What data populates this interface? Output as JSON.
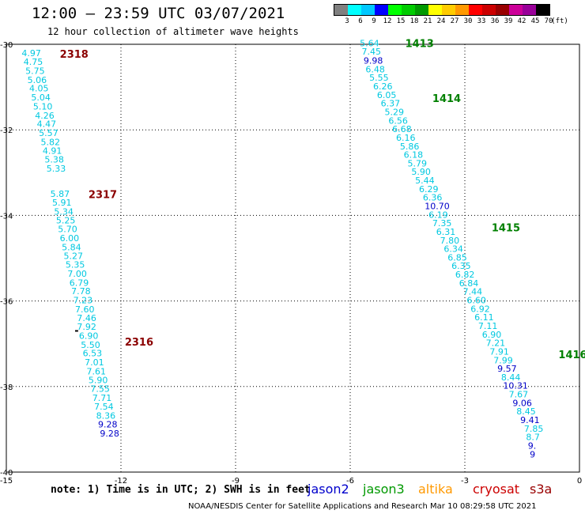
{
  "header": {
    "title": "12:00 – 23:59 UTC 03/07/2021",
    "subtitle": "12 hour collection of altimeter wave heights"
  },
  "scale": {
    "unit": "(ft)",
    "colors": [
      "#808080",
      "#00ffff",
      "#00c8ff",
      "#0000ff",
      "#00ff00",
      "#00cc00",
      "#009900",
      "#ffff00",
      "#ffcc00",
      "#ff9900",
      "#ff0000",
      "#cc0000",
      "#990000",
      "#cc0099",
      "#990099",
      "#000000"
    ],
    "labels": [
      "3",
      "6",
      "9",
      "12",
      "15",
      "18",
      "21",
      "24",
      "27",
      "30",
      "33",
      "36",
      "39",
      "42",
      "45",
      "70"
    ]
  },
  "map": {
    "lon_ticks": [
      {
        "value": -15,
        "label": "-15"
      },
      {
        "value": -12,
        "label": "-12"
      },
      {
        "value": -9,
        "label": "-9"
      },
      {
        "value": -6,
        "label": "-6"
      },
      {
        "value": -3,
        "label": "-3"
      },
      {
        "value": 0,
        "label": "0"
      }
    ],
    "lat_ticks": [
      {
        "value": -30,
        "label": "-30"
      },
      {
        "value": -32,
        "label": "-32"
      },
      {
        "value": -34,
        "label": "-34"
      },
      {
        "value": -36,
        "label": "-36"
      },
      {
        "value": -38,
        "label": "-38"
      },
      {
        "value": -40,
        "label": "-40"
      }
    ],
    "time_labels": [
      {
        "text": "2318",
        "lon": -13.6,
        "lat": -30.22,
        "color": "#8b0000"
      },
      {
        "text": "2317",
        "lon": -12.85,
        "lat": -33.5,
        "color": "#8b0000"
      },
      {
        "text": "2316",
        "lon": -11.9,
        "lat": -36.95,
        "color": "#8b0000"
      },
      {
        "text": "1413",
        "lon": -4.56,
        "lat": -29.97,
        "color": "#008000"
      },
      {
        "text": "1414",
        "lon": -3.85,
        "lat": -31.26,
        "color": "#008000"
      },
      {
        "text": "1415",
        "lon": -2.3,
        "lat": -34.28,
        "color": "#008000"
      },
      {
        "text": "1416",
        "lon": -0.55,
        "lat": -37.25,
        "color": "#008000"
      }
    ],
    "wave_heights": [
      {
        "v": "4.97",
        "lon": -14.6,
        "lat": -30.2,
        "c": "#00c8e0"
      },
      {
        "v": "4.75",
        "lon": -14.55,
        "lat": -30.41,
        "c": "#00c8e0"
      },
      {
        "v": "5.75",
        "lon": -14.5,
        "lat": -30.62,
        "c": "#00c8e0"
      },
      {
        "v": "5.06",
        "lon": -14.45,
        "lat": -30.83,
        "c": "#00c8e0"
      },
      {
        "v": "4.05",
        "lon": -14.4,
        "lat": -31.03,
        "c": "#00c8e0"
      },
      {
        "v": "5.04",
        "lon": -14.35,
        "lat": -31.24,
        "c": "#00c8e0"
      },
      {
        "v": "5.10",
        "lon": -14.3,
        "lat": -31.45,
        "c": "#00c8e0"
      },
      {
        "v": "4.26",
        "lon": -14.25,
        "lat": -31.66,
        "c": "#00c8e0"
      },
      {
        "v": "4.47",
        "lon": -14.2,
        "lat": -31.86,
        "c": "#00c8e0"
      },
      {
        "v": "5.57",
        "lon": -14.15,
        "lat": -32.07,
        "c": "#00c8e0"
      },
      {
        "v": "5.82",
        "lon": -14.1,
        "lat": -32.28,
        "c": "#00c8e0"
      },
      {
        "v": "4.91",
        "lon": -14.05,
        "lat": -32.49,
        "c": "#00c8e0"
      },
      {
        "v": "5.38",
        "lon": -14.0,
        "lat": -32.69,
        "c": "#00c8e0"
      },
      {
        "v": "5.33",
        "lon": -13.95,
        "lat": -32.9,
        "c": "#00c8e0"
      },
      {
        "v": "5.87",
        "lon": -13.85,
        "lat": -33.49,
        "c": "#00c8e0"
      },
      {
        "v": "5.91",
        "lon": -13.8,
        "lat": -33.7,
        "c": "#00c8e0"
      },
      {
        "v": "5.34",
        "lon": -13.75,
        "lat": -33.91,
        "c": "#00c8e0"
      },
      {
        "v": "5.25",
        "lon": -13.7,
        "lat": -34.11,
        "c": "#00c8e0"
      },
      {
        "v": "5.70",
        "lon": -13.65,
        "lat": -34.32,
        "c": "#00c8e0"
      },
      {
        "v": "6.00",
        "lon": -13.6,
        "lat": -34.53,
        "c": "#00c8e0"
      },
      {
        "v": "5.84",
        "lon": -13.55,
        "lat": -34.74,
        "c": "#00c8e0"
      },
      {
        "v": "5.27",
        "lon": -13.5,
        "lat": -34.94,
        "c": "#00c8e0"
      },
      {
        "v": "5.35",
        "lon": -13.45,
        "lat": -35.15,
        "c": "#00c8e0"
      },
      {
        "v": "7.00",
        "lon": -13.4,
        "lat": -35.36,
        "c": "#00c8e0"
      },
      {
        "v": "6.79",
        "lon": -13.35,
        "lat": -35.57,
        "c": "#00c8e0"
      },
      {
        "v": "7.78",
        "lon": -13.3,
        "lat": -35.77,
        "c": "#00c8e0"
      },
      {
        "v": "7.23",
        "lon": -13.25,
        "lat": -35.98,
        "c": "#00c8e0"
      },
      {
        "v": "7.60",
        "lon": -13.2,
        "lat": -36.19,
        "c": "#00c8e0"
      },
      {
        "v": "7.46",
        "lon": -13.15,
        "lat": -36.4,
        "c": "#00c8e0"
      },
      {
        "v": "7.92",
        "lon": -13.15,
        "lat": -36.6,
        "c": "#00c8e0"
      },
      {
        "v": "6.90",
        "lon": -13.1,
        "lat": -36.81,
        "c": "#00c8e0"
      },
      {
        "v": "5.50",
        "lon": -13.05,
        "lat": -37.02,
        "c": "#00c8e0"
      },
      {
        "v": "6.53",
        "lon": -13.0,
        "lat": -37.22,
        "c": "#00c8e0"
      },
      {
        "v": "7.01",
        "lon": -12.95,
        "lat": -37.43,
        "c": "#00c8e0"
      },
      {
        "v": "7.61",
        "lon": -12.9,
        "lat": -37.64,
        "c": "#00c8e0"
      },
      {
        "v": "5.90",
        "lon": -12.85,
        "lat": -37.85,
        "c": "#00c8e0"
      },
      {
        "v": "7.55",
        "lon": -12.8,
        "lat": -38.05,
        "c": "#00c8e0"
      },
      {
        "v": "7.71",
        "lon": -12.75,
        "lat": -38.26,
        "c": "#00c8e0"
      },
      {
        "v": "7.54",
        "lon": -12.7,
        "lat": -38.47,
        "c": "#00c8e0"
      },
      {
        "v": "8.36",
        "lon": -12.65,
        "lat": -38.68,
        "c": "#00c8e0"
      },
      {
        "v": "9.28",
        "lon": -12.6,
        "lat": -38.88,
        "c": "#0000c8"
      },
      {
        "v": "9.28",
        "lon": -12.55,
        "lat": -39.09,
        "c": "#0000c8"
      },
      {
        "v": "5.64",
        "lon": -5.75,
        "lat": -29.97,
        "c": "#00c8e0"
      },
      {
        "v": "7.45",
        "lon": -5.7,
        "lat": -30.17,
        "c": "#00c8e0"
      },
      {
        "v": "9.98",
        "lon": -5.65,
        "lat": -30.38,
        "c": "#0000c8"
      },
      {
        "v": "6.48",
        "lon": -5.6,
        "lat": -30.58,
        "c": "#00c8e0"
      },
      {
        "v": "5.55",
        "lon": -5.5,
        "lat": -30.78,
        "c": "#00c8e0"
      },
      {
        "v": "6.26",
        "lon": -5.4,
        "lat": -30.98,
        "c": "#00c8e0"
      },
      {
        "v": "6.05",
        "lon": -5.3,
        "lat": -31.18,
        "c": "#00c8e0"
      },
      {
        "v": "6.37",
        "lon": -5.2,
        "lat": -31.38,
        "c": "#00c8e0"
      },
      {
        "v": "5.29",
        "lon": -5.1,
        "lat": -31.58,
        "c": "#00c8e0"
      },
      {
        "v": "6.56",
        "lon": -5.0,
        "lat": -31.78,
        "c": "#00c8e0"
      },
      {
        "v": "6.68",
        "lon": -4.9,
        "lat": -31.98,
        "c": "#00c8e0"
      },
      {
        "v": "6.16",
        "lon": -4.8,
        "lat": -32.18,
        "c": "#00c8e0"
      },
      {
        "v": "5.86",
        "lon": -4.7,
        "lat": -32.38,
        "c": "#00c8e0"
      },
      {
        "v": "6.18",
        "lon": -4.6,
        "lat": -32.58,
        "c": "#00c8e0"
      },
      {
        "v": "5.79",
        "lon": -4.5,
        "lat": -32.78,
        "c": "#00c8e0"
      },
      {
        "v": "5.90",
        "lon": -4.4,
        "lat": -32.98,
        "c": "#00c8e0"
      },
      {
        "v": "5.44",
        "lon": -4.3,
        "lat": -33.18,
        "c": "#00c8e0"
      },
      {
        "v": "6.29",
        "lon": -4.2,
        "lat": -33.38,
        "c": "#00c8e0"
      },
      {
        "v": "6.36",
        "lon": -4.1,
        "lat": -33.58,
        "c": "#00c8e0"
      },
      {
        "v": "10.70",
        "lon": -4.05,
        "lat": -33.78,
        "c": "#0000c8"
      },
      {
        "v": "6.19",
        "lon": -3.95,
        "lat": -33.98,
        "c": "#00c8e0"
      },
      {
        "v": "7.35",
        "lon": -3.85,
        "lat": -34.18,
        "c": "#00c8e0"
      },
      {
        "v": "6.31",
        "lon": -3.75,
        "lat": -34.38,
        "c": "#00c8e0"
      },
      {
        "v": "7.80",
        "lon": -3.65,
        "lat": -34.58,
        "c": "#00c8e0"
      },
      {
        "v": "6.34",
        "lon": -3.55,
        "lat": -34.78,
        "c": "#00c8e0"
      },
      {
        "v": "6.85",
        "lon": -3.45,
        "lat": -34.98,
        "c": "#00c8e0"
      },
      {
        "v": "6.35",
        "lon": -3.35,
        "lat": -35.18,
        "c": "#00c8e0"
      },
      {
        "v": "6.82",
        "lon": -3.25,
        "lat": -35.38,
        "c": "#00c8e0"
      },
      {
        "v": "6.84",
        "lon": -3.15,
        "lat": -35.58,
        "c": "#00c8e0"
      },
      {
        "v": "7.44",
        "lon": -3.05,
        "lat": -35.78,
        "c": "#00c8e0"
      },
      {
        "v": "6.60",
        "lon": -2.95,
        "lat": -35.98,
        "c": "#00c8e0"
      },
      {
        "v": "6.92",
        "lon": -2.85,
        "lat": -36.18,
        "c": "#00c8e0"
      },
      {
        "v": "6.11",
        "lon": -2.75,
        "lat": -36.38,
        "c": "#00c8e0"
      },
      {
        "v": "7.11",
        "lon": -2.65,
        "lat": -36.58,
        "c": "#00c8e0"
      },
      {
        "v": "6.90",
        "lon": -2.55,
        "lat": -36.78,
        "c": "#00c8e0"
      },
      {
        "v": "7.21",
        "lon": -2.45,
        "lat": -36.98,
        "c": "#00c8e0"
      },
      {
        "v": "7.91",
        "lon": -2.35,
        "lat": -37.18,
        "c": "#00c8e0"
      },
      {
        "v": "7.99",
        "lon": -2.25,
        "lat": -37.38,
        "c": "#00c8e0"
      },
      {
        "v": "9.57",
        "lon": -2.15,
        "lat": -37.58,
        "c": "#0000c8"
      },
      {
        "v": "8.44",
        "lon": -2.05,
        "lat": -37.78,
        "c": "#00c8e0"
      },
      {
        "v": "10.31",
        "lon": -2.0,
        "lat": -37.98,
        "c": "#0000c8"
      },
      {
        "v": "7.67",
        "lon": -1.85,
        "lat": -38.18,
        "c": "#00c8e0"
      },
      {
        "v": "9.06",
        "lon": -1.75,
        "lat": -38.38,
        "c": "#0000c8"
      },
      {
        "v": "8.45",
        "lon": -1.65,
        "lat": -38.58,
        "c": "#00c8e0"
      },
      {
        "v": "9.41",
        "lon": -1.55,
        "lat": -38.78,
        "c": "#0000c8"
      },
      {
        "v": "7.85",
        "lon": -1.45,
        "lat": -38.98,
        "c": "#00c8e0"
      },
      {
        "v": "8.7",
        "lon": -1.4,
        "lat": -39.18,
        "c": "#00c8e0"
      },
      {
        "v": "9.",
        "lon": -1.35,
        "lat": -39.38,
        "c": "#0000c8"
      },
      {
        "v": "9",
        "lon": -1.3,
        "lat": -39.58,
        "c": "#0000c8"
      }
    ]
  },
  "footer": {
    "note": "note: 1) Time is in UTC; 2) SWH is in feet",
    "satellites": [
      {
        "name": "jason2",
        "color": "#0000cc"
      },
      {
        "name": "jason3",
        "color": "#009900"
      },
      {
        "name": "altika",
        "color": "#ff9900"
      },
      {
        "name": "cryosat",
        "color": "#cc0000"
      },
      {
        "name": "s3a",
        "color": "#990000"
      }
    ],
    "credit": "NOAA/NESDIS Center for Satellite Applications and Research   Mar 10 08:29:58 UTC 2021"
  }
}
